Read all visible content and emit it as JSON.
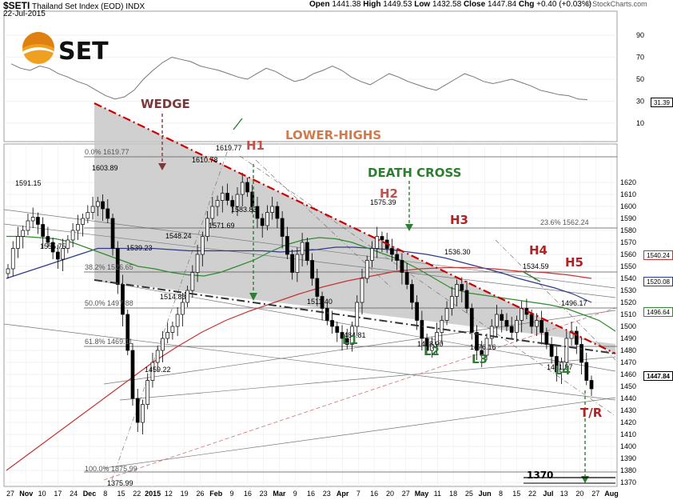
{
  "header": {
    "symbol": "$SETI",
    "name": "Thailand Set Index (EOD)",
    "exchange": "INDX",
    "date": "22-Jul-2015",
    "open_label": "Open",
    "open": "1441.38",
    "high_label": "High",
    "high": "1449.53",
    "low_label": "Low",
    "low": "1432.58",
    "close_label": "Close",
    "close": "1447.84",
    "chg_label": "Chg",
    "chg": "+0.40 (+0.03%)",
    "watermark": "© StockCharts.com"
  },
  "logo": {
    "text": "SET"
  },
  "colors": {
    "wedge_fill": "#c8c8c8",
    "wedge_top": "#cc0000",
    "ma_green": "#2e8b2e",
    "ma_blue": "#2d3a8c",
    "ma_red": "#c83232",
    "annot_brown": "#7a3a3a",
    "annot_orange": "#d27a4a",
    "annot_green": "#2e7d32",
    "annot_red": "#b22222"
  },
  "chart_data": {
    "type": "candlestick",
    "rsi_panel": {
      "y_ticks": [
        10,
        30,
        50,
        70,
        90
      ],
      "last_value": "31.39",
      "values": [
        64,
        60,
        58,
        62,
        60,
        55,
        52,
        48,
        45,
        40,
        35,
        32,
        34,
        40,
        50,
        58,
        65,
        70,
        68,
        66,
        62,
        60,
        58,
        55,
        52,
        50,
        55,
        60,
        57,
        52,
        48,
        50,
        55,
        58,
        62,
        58,
        52,
        48,
        45,
        50,
        55,
        52,
        48,
        45,
        42,
        40,
        45,
        50,
        55,
        52,
        48,
        46,
        48,
        50,
        47,
        44,
        40,
        38,
        36,
        35,
        32,
        31.39
      ]
    },
    "price_panel": {
      "y_ticks": [
        1370,
        1380,
        1390,
        1400,
        1410,
        1420,
        1430,
        1440,
        1450,
        1460,
        1470,
        1480,
        1490,
        1500,
        1510,
        1520,
        1530,
        1540,
        1550,
        1560,
        1570,
        1580,
        1590,
        1600,
        1610,
        1620
      ],
      "x_ticks": [
        "27",
        "Nov",
        "10",
        "17",
        "24",
        "Dec",
        "8",
        "15",
        "22",
        "2015",
        "12",
        "19",
        "26",
        "Feb",
        "9",
        "16",
        "23",
        "Mar",
        "9",
        "16",
        "23",
        "Apr",
        "7",
        "16",
        "20",
        "27",
        "May",
        "11",
        "18",
        "25",
        "Jun",
        "8",
        "15",
        "22",
        "Jul",
        "13",
        "20",
        "27",
        "Aug"
      ],
      "right_labels": [
        "1540.24",
        "1520.08",
        "1496.64",
        "1447.84"
      ],
      "fib_levels": [
        {
          "label": "0.0%",
          "value": "1619.77"
        },
        {
          "label": "23.6%",
          "value": "1562.24"
        },
        {
          "label": "38.2%",
          "value": "1526.65"
        },
        {
          "label": "50.0%",
          "value": "1497.88"
        },
        {
          "label": "61.8%",
          "value": "1469.11"
        },
        {
          "label": "100.0%",
          "value": "1375.99"
        }
      ],
      "price_labels": [
        "1591.15",
        "1555.75",
        "1603.89",
        "1539.23",
        "1548.24",
        "1514.83",
        "1459.22",
        "1375.99",
        "1610.78",
        "1619.77",
        "1571.69",
        "1583.83",
        "1511.40",
        "1484.81",
        "1575.39",
        "1478.90",
        "1536.30",
        "1476.16",
        "1534.59",
        "1461.57",
        "1496.17"
      ],
      "annotations": [
        "WEDGE",
        "LOWER-HIGHS",
        "DEATH CROSS",
        "H1",
        "H2",
        "H3",
        "H4",
        "H5",
        "L1",
        "L2",
        "L3",
        "L4",
        "T/R",
        "1370"
      ],
      "closes": [
        1548,
        1565,
        1575,
        1580,
        1588,
        1591,
        1585,
        1575,
        1570,
        1562,
        1556,
        1565,
        1572,
        1580,
        1585,
        1590,
        1595,
        1600,
        1604,
        1598,
        1590,
        1565,
        1535,
        1510,
        1480,
        1440,
        1420,
        1435,
        1455,
        1470,
        1480,
        1490,
        1495,
        1500,
        1510,
        1520,
        1530,
        1545,
        1560,
        1575,
        1590,
        1600,
        1605,
        1611,
        1605,
        1600,
        1610,
        1620,
        1612,
        1600,
        1590,
        1584,
        1595,
        1600,
        1590,
        1575,
        1560,
        1545,
        1560,
        1570,
        1555,
        1540,
        1525,
        1515,
        1505,
        1500,
        1495,
        1490,
        1485,
        1500,
        1520,
        1540,
        1555,
        1565,
        1575,
        1572,
        1565,
        1560,
        1555,
        1545,
        1535,
        1520,
        1505,
        1490,
        1480,
        1485,
        1495,
        1505,
        1515,
        1525,
        1535,
        1530,
        1515,
        1495,
        1480,
        1476,
        1490,
        1500,
        1510,
        1505,
        1500,
        1495,
        1505,
        1515,
        1510,
        1500,
        1505,
        1495,
        1485,
        1475,
        1462,
        1470,
        1490,
        1496,
        1485,
        1470,
        1455,
        1448
      ],
      "ma_green": [
        1575,
        1575,
        1574,
        1573,
        1570,
        1565,
        1560,
        1555,
        1550,
        1548,
        1545,
        1543,
        1542,
        1545,
        1550,
        1555,
        1562,
        1568,
        1572,
        1574,
        1573,
        1570,
        1565,
        1560,
        1555,
        1548,
        1540,
        1532,
        1528,
        1526,
        1524,
        1522,
        1520,
        1518,
        1515,
        1510,
        1505,
        1496
      ],
      "ma_blue": [
        1540,
        1545,
        1550,
        1555,
        1560,
        1565,
        1565,
        1565,
        1565,
        1564,
        1563,
        1563,
        1563,
        1563,
        1563,
        1562,
        1563,
        1564,
        1566,
        1566,
        1565,
        1564,
        1562,
        1560,
        1557,
        1553,
        1549,
        1545,
        1540,
        1536,
        1532,
        1527,
        1520
      ],
      "ma_red": [
        1380,
        1395,
        1410,
        1425,
        1440,
        1455,
        1470,
        1483,
        1495,
        1505,
        1513,
        1520,
        1527,
        1533,
        1538,
        1542,
        1546,
        1548,
        1549,
        1549,
        1548,
        1546,
        1545,
        1543,
        1540
      ]
    }
  }
}
